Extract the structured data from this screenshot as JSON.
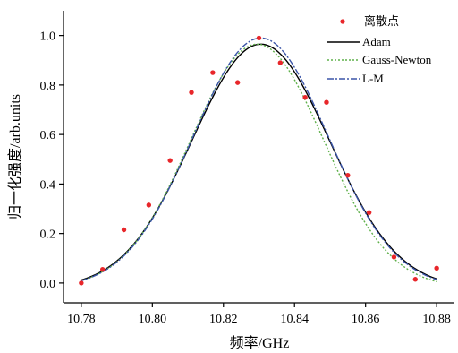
{
  "chart_data": {
    "type": "scatter",
    "title": "",
    "xlabel": "频率/GHz",
    "ylabel": "归一化强度/arb.units",
    "xlim": [
      10.775,
      10.885
    ],
    "ylim": [
      -0.08,
      1.1
    ],
    "xticks": [
      "10.78",
      "10.80",
      "10.82",
      "10.84",
      "10.86",
      "10.88"
    ],
    "yticks": [
      "0.0",
      "0.2",
      "0.4",
      "0.6",
      "0.8",
      "1.0"
    ],
    "grid": false,
    "legend_position": "top-right",
    "legend": [
      "离散点",
      "Adam",
      "Gauss-Newton",
      "L-M"
    ],
    "series": [
      {
        "name": "离散点",
        "kind": "points",
        "color": "#e8262a",
        "x": [
          10.78,
          10.786,
          10.792,
          10.799,
          10.805,
          10.811,
          10.817,
          10.824,
          10.83,
          10.836,
          10.843,
          10.849,
          10.855,
          10.861,
          10.868,
          10.874,
          10.88
        ],
        "y": [
          0.0,
          0.055,
          0.215,
          0.315,
          0.495,
          0.77,
          0.85,
          0.81,
          0.99,
          0.89,
          0.75,
          0.73,
          0.435,
          0.285,
          0.105,
          0.015,
          0.06
        ]
      },
      {
        "name": "Adam",
        "kind": "line",
        "color": "#000000",
        "dash": "solid",
        "model": {
          "peak": 0.965,
          "center": 10.8305,
          "sigma": 0.0193,
          "baseline": -0.02
        }
      },
      {
        "name": "Gauss-Newton",
        "kind": "line",
        "color": "#5fb04a",
        "dash": "dotted",
        "model": {
          "peak": 0.965,
          "center": 10.8295,
          "sigma": 0.0187,
          "baseline": -0.02
        }
      },
      {
        "name": "L-M",
        "kind": "line",
        "color": "#3b55a8",
        "dash": "dashdot",
        "model": {
          "peak": 0.99,
          "center": 10.8305,
          "sigma": 0.019,
          "baseline": -0.02
        }
      }
    ]
  }
}
